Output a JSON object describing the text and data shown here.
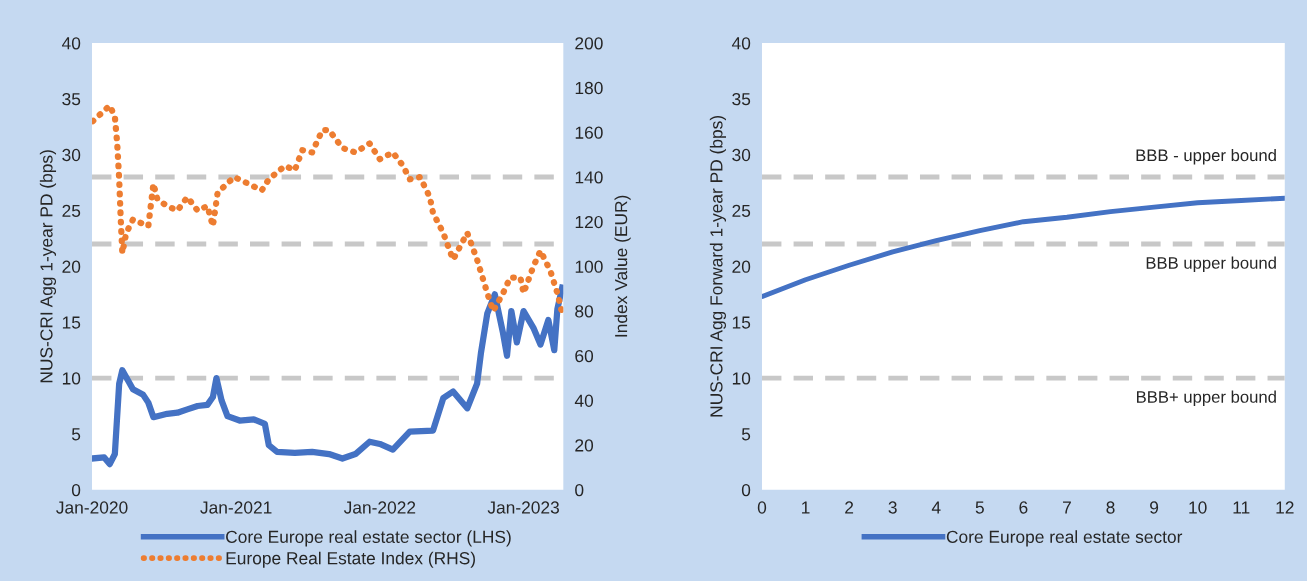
{
  "chart_data": [
    {
      "type": "line",
      "ylabel": "NUS-CRI Agg 1-year PD (bps)",
      "y2label": "Index Value (EUR)",
      "xlim": [
        "2020-01-01",
        "2023-04-12"
      ],
      "xticks": [
        {
          "value": "2020-01-01",
          "label": "Jan-2020"
        },
        {
          "value": "2021-01-01",
          "label": "Jan-2021"
        },
        {
          "value": "2022-01-01",
          "label": "Jan-2022"
        },
        {
          "value": "2023-01-01",
          "label": "Jan-2023"
        }
      ],
      "ylim": [
        0,
        40
      ],
      "yticks": [
        0,
        5,
        10,
        15,
        20,
        25,
        30,
        35,
        40
      ],
      "y2lim": [
        0,
        200
      ],
      "y2ticks": [
        0,
        20,
        40,
        60,
        80,
        100,
        120,
        140,
        160,
        180,
        200
      ],
      "ref_lines": [
        {
          "axis": "y",
          "value": 10,
          "color": "#c8c8c8",
          "line_style": "dashed"
        },
        {
          "axis": "y",
          "value": 22,
          "color": "#c8c8c8",
          "line_style": "dashed"
        },
        {
          "axis": "y",
          "value": 28,
          "color": "#c8c8c8",
          "line_style": "dashed"
        }
      ],
      "legend": "bottom",
      "grid": false,
      "series": [
        {
          "name": "Core Europe real estate sector (LHS)",
          "color": "#4472c4",
          "line_style": "solid",
          "x": [
            "2020-01-01",
            "2020-02-01",
            "2020-02-15",
            "2020-02-28",
            "2020-03-10",
            "2020-03-18",
            "2020-04-14",
            "2020-05-10",
            "2020-05-23",
            "2020-06-05",
            "2020-07-10",
            "2020-08-05",
            "2020-08-30",
            "2020-09-25",
            "2020-10-20",
            "2020-11-03",
            "2020-11-12",
            "2020-11-25",
            "2020-12-10",
            "2021-01-10",
            "2021-02-15",
            "2021-03-15",
            "2021-03-25",
            "2021-04-15",
            "2021-05-30",
            "2021-07-13",
            "2021-08-25",
            "2021-09-28",
            "2021-10-31",
            "2021-12-06",
            "2022-01-01",
            "2022-02-03",
            "2022-03-18",
            "2022-05-16",
            "2022-06-11",
            "2022-07-06",
            "2022-08-11",
            "2022-09-05",
            "2022-09-15",
            "2022-10-01",
            "2022-10-20",
            "2022-11-10",
            "2022-11-20",
            "2022-12-01",
            "2022-12-15",
            "2023-01-01",
            "2023-01-26",
            "2023-02-13",
            "2023-03-05",
            "2023-03-20",
            "2023-03-28",
            "2023-04-09"
          ],
          "values": [
            2.8,
            2.9,
            2.3,
            3.2,
            9.5,
            10.7,
            9.0,
            8.5,
            7.8,
            6.5,
            6.8,
            6.9,
            7.2,
            7.5,
            7.6,
            8.3,
            10.0,
            8.0,
            6.6,
            6.2,
            6.3,
            5.9,
            4.0,
            3.4,
            3.3,
            3.4,
            3.2,
            2.8,
            3.2,
            4.3,
            4.1,
            3.6,
            5.2,
            5.3,
            8.2,
            8.8,
            7.3,
            9.5,
            12.3,
            15.8,
            17.5,
            14.0,
            12.0,
            16.0,
            13.2,
            16.0,
            14.5,
            13.0,
            15.2,
            12.5,
            16.2,
            18.1
          ]
        },
        {
          "name": "Europe Real Estate Index (RHS)",
          "color": "#ed7d31",
          "line_style": "dotted",
          "axis": "y2",
          "x": [
            "2020-01-03",
            "2020-02-15",
            "2020-02-28",
            "2020-03-05",
            "2020-03-10",
            "2020-03-14",
            "2020-03-18",
            "2020-03-28",
            "2020-04-14",
            "2020-05-10",
            "2020-05-23",
            "2020-06-05",
            "2020-06-15",
            "2020-07-10",
            "2020-08-05",
            "2020-08-30",
            "2020-09-25",
            "2020-10-20",
            "2020-11-03",
            "2020-11-15",
            "2020-12-27",
            "2021-02-01",
            "2021-03-07",
            "2021-03-25",
            "2021-05-05",
            "2021-05-30",
            "2021-06-18",
            "2021-07-13",
            "2021-08-08",
            "2021-08-25",
            "2021-09-28",
            "2021-10-31",
            "2021-12-06",
            "2022-01-01",
            "2022-02-03",
            "2022-03-01",
            "2022-03-18",
            "2022-04-13",
            "2022-05-08",
            "2022-05-16",
            "2022-06-11",
            "2022-07-06",
            "2022-08-11",
            "2022-09-05",
            "2022-10-01",
            "2022-10-16",
            "2022-11-10",
            "2022-11-28",
            "2022-12-24",
            "2023-01-01",
            "2023-01-26",
            "2023-02-13",
            "2023-03-10",
            "2023-03-28",
            "2023-04-09"
          ],
          "values": [
            165,
            172,
            167,
            155,
            139,
            121,
            106,
            115,
            121,
            119,
            118,
            137,
            130,
            127,
            125,
            131,
            125,
            127,
            118,
            133,
            140,
            137,
            134,
            139,
            145,
            143,
            152,
            151,
            161,
            161,
            153,
            151,
            155,
            148,
            151,
            145,
            139,
            140,
            131,
            124,
            115,
            103,
            115,
            103,
            88,
            80,
            88,
            95,
            95,
            88,
            100,
            107,
            98,
            88,
            79
          ]
        }
      ]
    },
    {
      "type": "line",
      "ylabel": "NUS-CRI Agg Forward 1-year PD (bps)",
      "xlim": [
        0,
        12
      ],
      "xticks": [
        0,
        1,
        2,
        3,
        4,
        5,
        6,
        7,
        8,
        9,
        10,
        11,
        12
      ],
      "ylim": [
        0,
        40
      ],
      "yticks": [
        0,
        5,
        10,
        15,
        20,
        25,
        30,
        35,
        40
      ],
      "ref_lines": [
        {
          "axis": "y",
          "value": 28,
          "label": "BBB - upper bound",
          "color": "#c8c8c8",
          "line_style": "dashed"
        },
        {
          "axis": "y",
          "value": 22,
          "label": "BBB upper bound",
          "color": "#c8c8c8",
          "line_style": "dashed"
        },
        {
          "axis": "y",
          "value": 10,
          "label": "BBB+ upper bound",
          "color": "#c8c8c8",
          "line_style": "dashed"
        }
      ],
      "legend": "bottom",
      "grid": false,
      "series": [
        {
          "name": "Core Europe real estate sector",
          "color": "#4472c4",
          "line_style": "solid",
          "x": [
            0,
            1,
            2,
            3,
            4,
            5,
            6,
            7,
            8,
            9,
            10,
            11,
            12
          ],
          "values": [
            17.3,
            18.8,
            20.1,
            21.3,
            22.3,
            23.2,
            24.0,
            24.4,
            24.9,
            25.3,
            25.7,
            25.9,
            26.1
          ]
        }
      ]
    }
  ]
}
